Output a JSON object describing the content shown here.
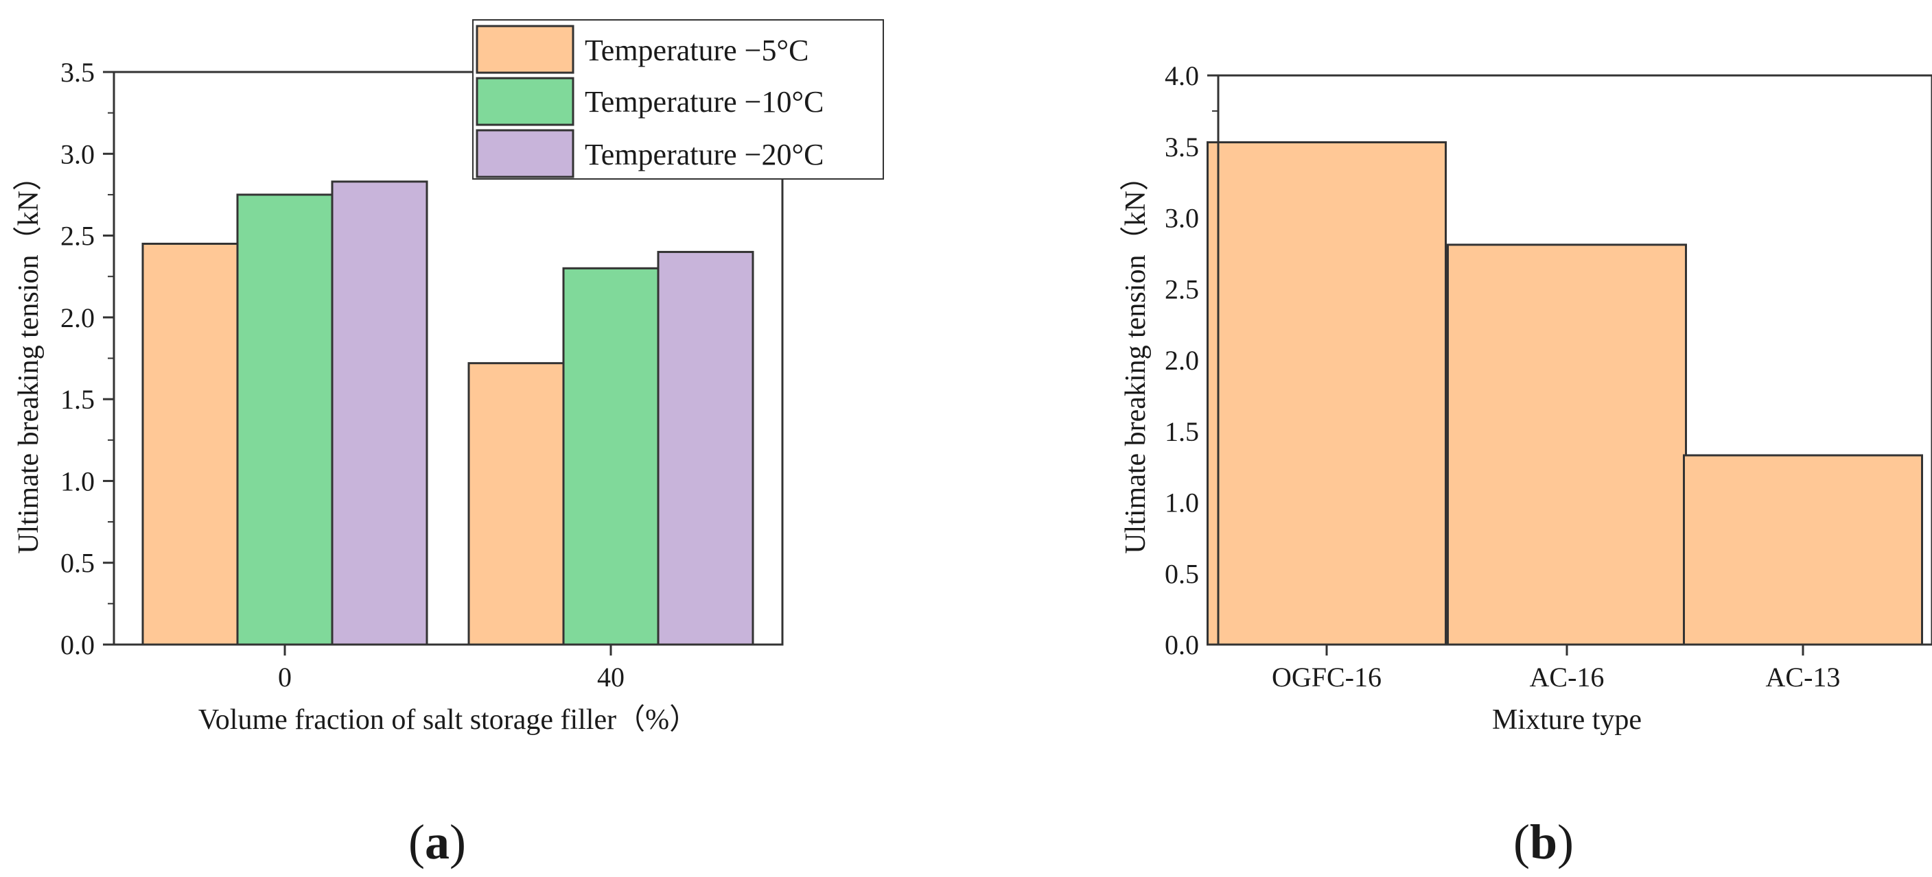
{
  "figure_labels": [
    {
      "open": "(",
      "letter": "a",
      "close": ")"
    },
    {
      "open": "(",
      "letter": "b",
      "close": ")"
    }
  ],
  "chart_data": [
    {
      "type": "bar",
      "panel": "a",
      "title": "",
      "xlabel": "Volume fraction of salt storage filler（%）",
      "ylabel": "Ultimate breaking tension（kN）",
      "categories": [
        "0",
        "40"
      ],
      "ylim": [
        0,
        3.5
      ],
      "yticks": [
        "0.0",
        "0.5",
        "1.0",
        "1.5",
        "2.0",
        "2.5",
        "3.0",
        "3.5"
      ],
      "legend_position": "top-right",
      "series": [
        {
          "name": "Temperature −5°C",
          "color": "#FFC896",
          "values": [
            2.45,
            1.72
          ]
        },
        {
          "name": "Temperature −10°C",
          "color": "#80D99A",
          "values": [
            2.75,
            2.3
          ]
        },
        {
          "name": "Temperature −20°C",
          "color": "#C8B4DA",
          "values": [
            2.83,
            2.4
          ]
        }
      ]
    },
    {
      "type": "bar",
      "panel": "b",
      "title": "",
      "xlabel": "Mixture type",
      "ylabel": "Ultimate breaking tension（kN）",
      "categories": [
        "OGFC-16",
        "AC-16",
        "AC-13"
      ],
      "ylim": [
        0,
        4.0
      ],
      "yticks": [
        "0.0",
        "0.5",
        "1.0",
        "1.5",
        "2.0",
        "2.5",
        "3.0",
        "3.5",
        "4.0"
      ],
      "series": [
        {
          "name": "Ultimate breaking tension",
          "color": "#FFC896",
          "values": [
            3.53,
            2.81,
            1.33
          ]
        }
      ]
    }
  ]
}
